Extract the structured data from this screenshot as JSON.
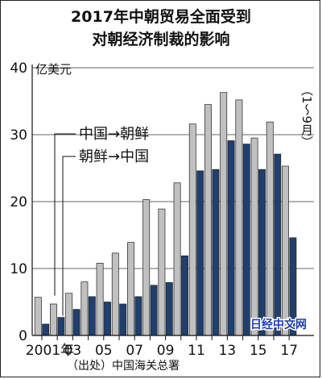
{
  "chart_data": {
    "type": "bar",
    "title_lines": [
      "2017年中朝贸易全面受到",
      "对朝经济制裁的影响"
    ],
    "unit": "亿美元",
    "period_note": "（1～9月）",
    "source": "（出处）中国海关总署",
    "watermark": "日经中文网",
    "ylim": [
      0,
      40
    ],
    "yticks": [
      0,
      10,
      20,
      30,
      40
    ],
    "x_tick_labels": [
      "2001年",
      "03",
      "05",
      "07",
      "09",
      "11",
      "13",
      "15",
      "17"
    ],
    "categories": [
      "2001",
      "2002",
      "2003",
      "2004",
      "2005",
      "2006",
      "2007",
      "2008",
      "2009",
      "2010",
      "2011",
      "2012",
      "2013",
      "2014",
      "2015",
      "2016",
      "2017"
    ],
    "series": [
      {
        "name": "中国→朝鲜",
        "color": "#c0c0c0",
        "values": [
          5.7,
          4.7,
          6.3,
          8.0,
          10.8,
          12.3,
          13.9,
          20.3,
          18.9,
          22.8,
          31.6,
          34.5,
          36.3,
          35.2,
          29.5,
          31.9,
          25.3
        ]
      },
      {
        "name": "朝鲜→中国",
        "color": "#1f3f6e",
        "values": [
          1.7,
          2.7,
          3.9,
          5.8,
          5.0,
          4.7,
          5.8,
          7.5,
          7.9,
          11.9,
          24.6,
          24.8,
          29.1,
          28.6,
          24.8,
          27.1,
          14.6
        ]
      }
    ]
  }
}
